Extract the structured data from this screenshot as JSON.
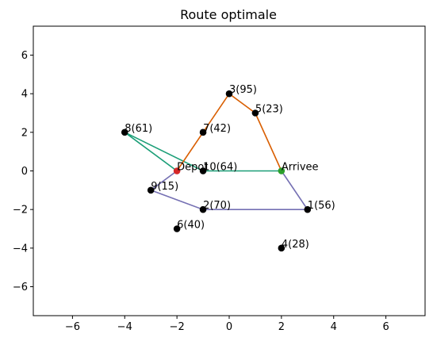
{
  "chart_data": {
    "type": "scatter",
    "title": "Route optimale",
    "xlabel": "",
    "ylabel": "",
    "xlim": [
      -7.5,
      7.5
    ],
    "ylim": [
      -7.5,
      7.5
    ],
    "xticks": [
      -6,
      -4,
      -2,
      0,
      2,
      4,
      6
    ],
    "yticks": [
      -6,
      -4,
      -2,
      0,
      2,
      4,
      6
    ],
    "grid": false,
    "points": [
      {
        "label": "Depot",
        "x": -2,
        "y": 0,
        "color": "#d62728"
      },
      {
        "label": "Arrivee",
        "x": 2,
        "y": 0,
        "color": "#2ca02c"
      },
      {
        "label": "1(56)",
        "x": 3,
        "y": -2,
        "color": "#000000"
      },
      {
        "label": "2(70)",
        "x": -1,
        "y": -2,
        "color": "#000000"
      },
      {
        "label": "3(95)",
        "x": 0,
        "y": 4,
        "color": "#000000"
      },
      {
        "label": "4(28)",
        "x": 2,
        "y": -4,
        "color": "#000000"
      },
      {
        "label": "5(23)",
        "x": 1,
        "y": 3,
        "color": "#000000"
      },
      {
        "label": "6(40)",
        "x": -2,
        "y": -3,
        "color": "#000000"
      },
      {
        "label": "7(42)",
        "x": -1,
        "y": 2,
        "color": "#000000"
      },
      {
        "label": "8(61)",
        "x": -4,
        "y": 2,
        "color": "#000000"
      },
      {
        "label": "9(15)",
        "x": -3,
        "y": -1,
        "color": "#000000"
      },
      {
        "label": "10(64)",
        "x": -1,
        "y": 0,
        "color": "#000000"
      }
    ],
    "routes": [
      {
        "color": "#1b9e77",
        "path": [
          [
            -2,
            0
          ],
          [
            -4,
            2
          ],
          [
            -1,
            0
          ],
          [
            2,
            0
          ]
        ]
      },
      {
        "color": "#d95f02",
        "path": [
          [
            -2,
            0
          ],
          [
            -1,
            2
          ],
          [
            0,
            4
          ],
          [
            1,
            3
          ],
          [
            2,
            0
          ]
        ]
      },
      {
        "color": "#7570b3",
        "path": [
          [
            -2,
            0
          ],
          [
            -3,
            -1
          ],
          [
            -1,
            -2
          ],
          [
            3,
            -2
          ],
          [
            2,
            0
          ]
        ]
      }
    ]
  }
}
